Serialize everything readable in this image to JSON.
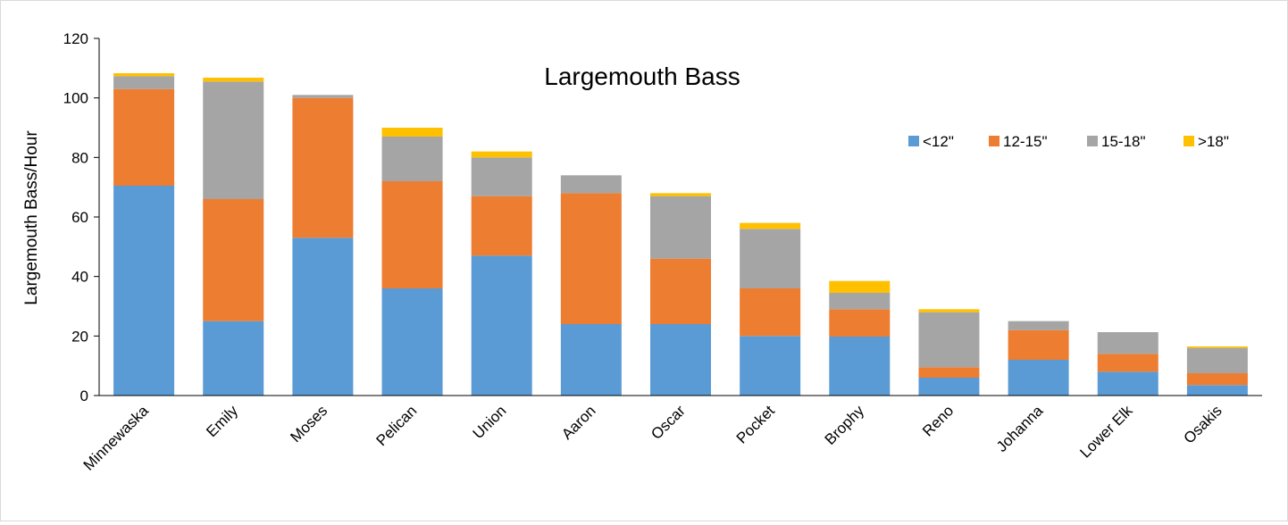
{
  "chart_data": {
    "type": "bar",
    "stacked": true,
    "title": "Largemouth Bass",
    "xlabel": "",
    "ylabel": "Largemouth Bass/Hour",
    "ylim": [
      0,
      120
    ],
    "yticks": [
      0,
      20,
      40,
      60,
      80,
      100,
      120
    ],
    "grid": false,
    "legend_position": "top-right",
    "categories": [
      "Minnewaska",
      "Emily",
      "Moses",
      "Pelican",
      "Union",
      "Aaron",
      "Oscar",
      "Pocket",
      "Brophy",
      "Reno",
      "Johanna",
      "Lower Elk",
      "Osakis"
    ],
    "series": [
      {
        "name": "<12\"",
        "color": "#5b9bd5",
        "values": [
          70.5,
          25,
          53,
          36,
          47,
          24,
          24,
          20,
          19.8,
          6,
          12,
          8,
          3.5
        ]
      },
      {
        "name": "12-15\"",
        "color": "#ed7d31",
        "values": [
          32.5,
          41,
          47,
          36,
          20,
          44,
          22,
          16,
          9.2,
          3.5,
          10,
          6,
          4
        ]
      },
      {
        "name": "15-18\"",
        "color": "#a5a5a5",
        "values": [
          4.3,
          39.5,
          1,
          15,
          13,
          6,
          21,
          20,
          5.5,
          18.5,
          3,
          7.3,
          8.5
        ]
      },
      {
        "name": ">18\"",
        "color": "#ffc000",
        "values": [
          1,
          1.3,
          0,
          3,
          2,
          0,
          1,
          2,
          4,
          1,
          0,
          0,
          0.5
        ]
      }
    ]
  }
}
